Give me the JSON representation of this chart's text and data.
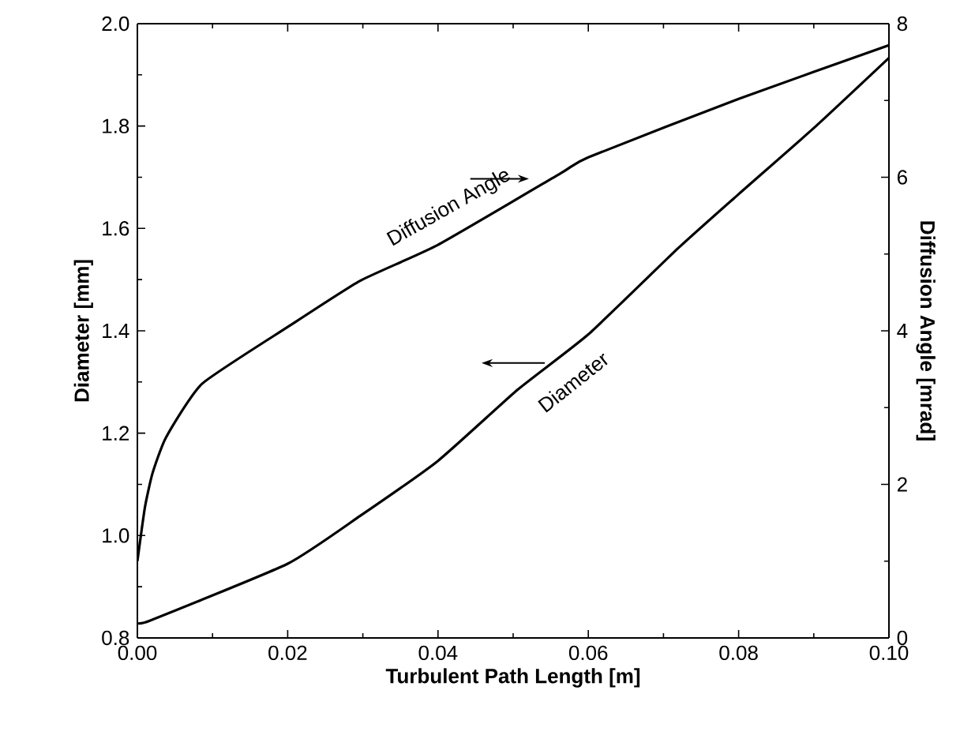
{
  "chart_data": {
    "type": "line",
    "xlabel": "Turbulent Path Length [m]",
    "ylabel": "Diameter [mm]",
    "y2label": "Diffusion Angle [mrad]",
    "xlim": [
      0,
      0.1
    ],
    "xticks": [
      {
        "value": 0,
        "label": "0.00"
      },
      {
        "value": 0.02,
        "label": "0.02"
      },
      {
        "value": 0.04,
        "label": "0.04"
      },
      {
        "value": 0.06,
        "label": "0.06"
      },
      {
        "value": 0.08,
        "label": "0.08"
      },
      {
        "value": 0.1,
        "label": "0.10"
      }
    ],
    "ylim": [
      0.8,
      2.0
    ],
    "yticks": [
      0.8,
      {
        "value": 1.0,
        "label": "1.0"
      },
      1.2,
      1.4,
      1.6,
      1.8,
      {
        "value": 2.0,
        "label": "2.0"
      }
    ],
    "y2lim": [
      0,
      8
    ],
    "y2ticks": [
      0,
      2,
      4,
      6,
      8
    ],
    "series": [
      {
        "axis": "y2",
        "color": "#000000",
        "x": [
          0,
          0.001,
          0.002,
          0.0038,
          0.0086,
          0.02,
          0.0296,
          0.04,
          0.0563,
          0.06,
          0.08,
          0.1
        ],
        "values": [
          1.0,
          1.7,
          2.14,
          2.61,
          3.31,
          4.05,
          4.65,
          5.12,
          6.05,
          6.26,
          7.02,
          7.72
        ]
      },
      {
        "axis": "y",
        "color": "#000000",
        "x": [
          0,
          0.0017,
          0.02,
          0.0296,
          0.04,
          0.0506,
          0.06,
          0.072,
          0.08,
          0.0903,
          0.1
        ],
        "values": [
          0.83,
          0.834,
          0.945,
          1.038,
          1.146,
          1.285,
          1.393,
          1.562,
          1.667,
          1.8,
          1.933
        ]
      }
    ],
    "annotations": [
      "Diffusion Angle",
      "Diameter"
    ],
    "grid": false,
    "marker": "none",
    "line_style": "solid"
  }
}
